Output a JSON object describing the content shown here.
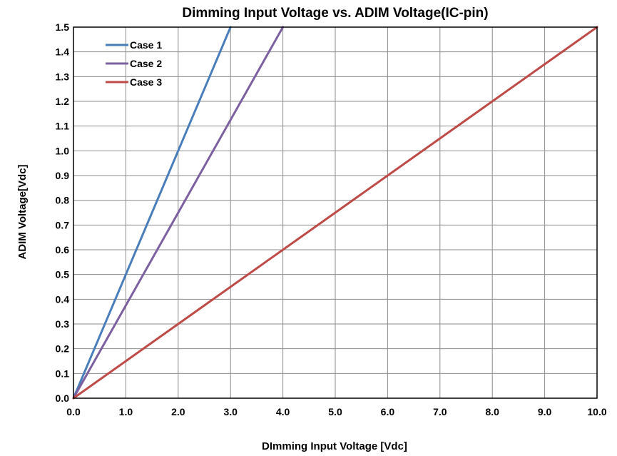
{
  "chart_data": {
    "type": "line",
    "title": "Dimming Input Voltage vs. ADIM Voltage(IC-pin)",
    "xlabel": "DImming Input Voltage [Vdc]",
    "ylabel": "ADIM Voltage[Vdc]",
    "xlim": [
      0,
      10
    ],
    "ylim": [
      0,
      1.5
    ],
    "x_ticks": [
      "0.0",
      "1.0",
      "2.0",
      "3.0",
      "4.0",
      "5.0",
      "6.0",
      "7.0",
      "8.0",
      "9.0",
      "10.0"
    ],
    "y_ticks": [
      "0.0",
      "0.1",
      "0.2",
      "0.3",
      "0.4",
      "0.5",
      "0.6",
      "0.7",
      "0.8",
      "0.9",
      "1.0",
      "1.1",
      "1.2",
      "1.3",
      "1.4",
      "1.5"
    ],
    "grid": true,
    "legend_position": "top-left",
    "series": [
      {
        "name": "Case 1",
        "color": "#4a7ebb",
        "x": [
          0,
          0.5,
          1.0,
          1.5,
          2.0,
          2.5,
          3.0
        ],
        "y": [
          0,
          0.25,
          0.5,
          0.75,
          1.0,
          1.25,
          1.5
        ]
      },
      {
        "name": "Case 2",
        "color": "#7d60a0",
        "x": [
          0,
          0.5,
          1.0,
          1.5,
          2.0,
          2.5,
          3.0,
          3.5,
          4.0
        ],
        "y": [
          0,
          0.1875,
          0.375,
          0.5625,
          0.75,
          0.9375,
          1.125,
          1.3125,
          1.5
        ]
      },
      {
        "name": "Case 3",
        "color": "#be4b48",
        "x": [
          0,
          1,
          2,
          3,
          4,
          5,
          6,
          7,
          8,
          9,
          10
        ],
        "y": [
          0,
          0.15,
          0.3,
          0.45,
          0.6,
          0.75,
          0.9,
          1.05,
          1.2,
          1.35,
          1.5
        ]
      }
    ]
  }
}
